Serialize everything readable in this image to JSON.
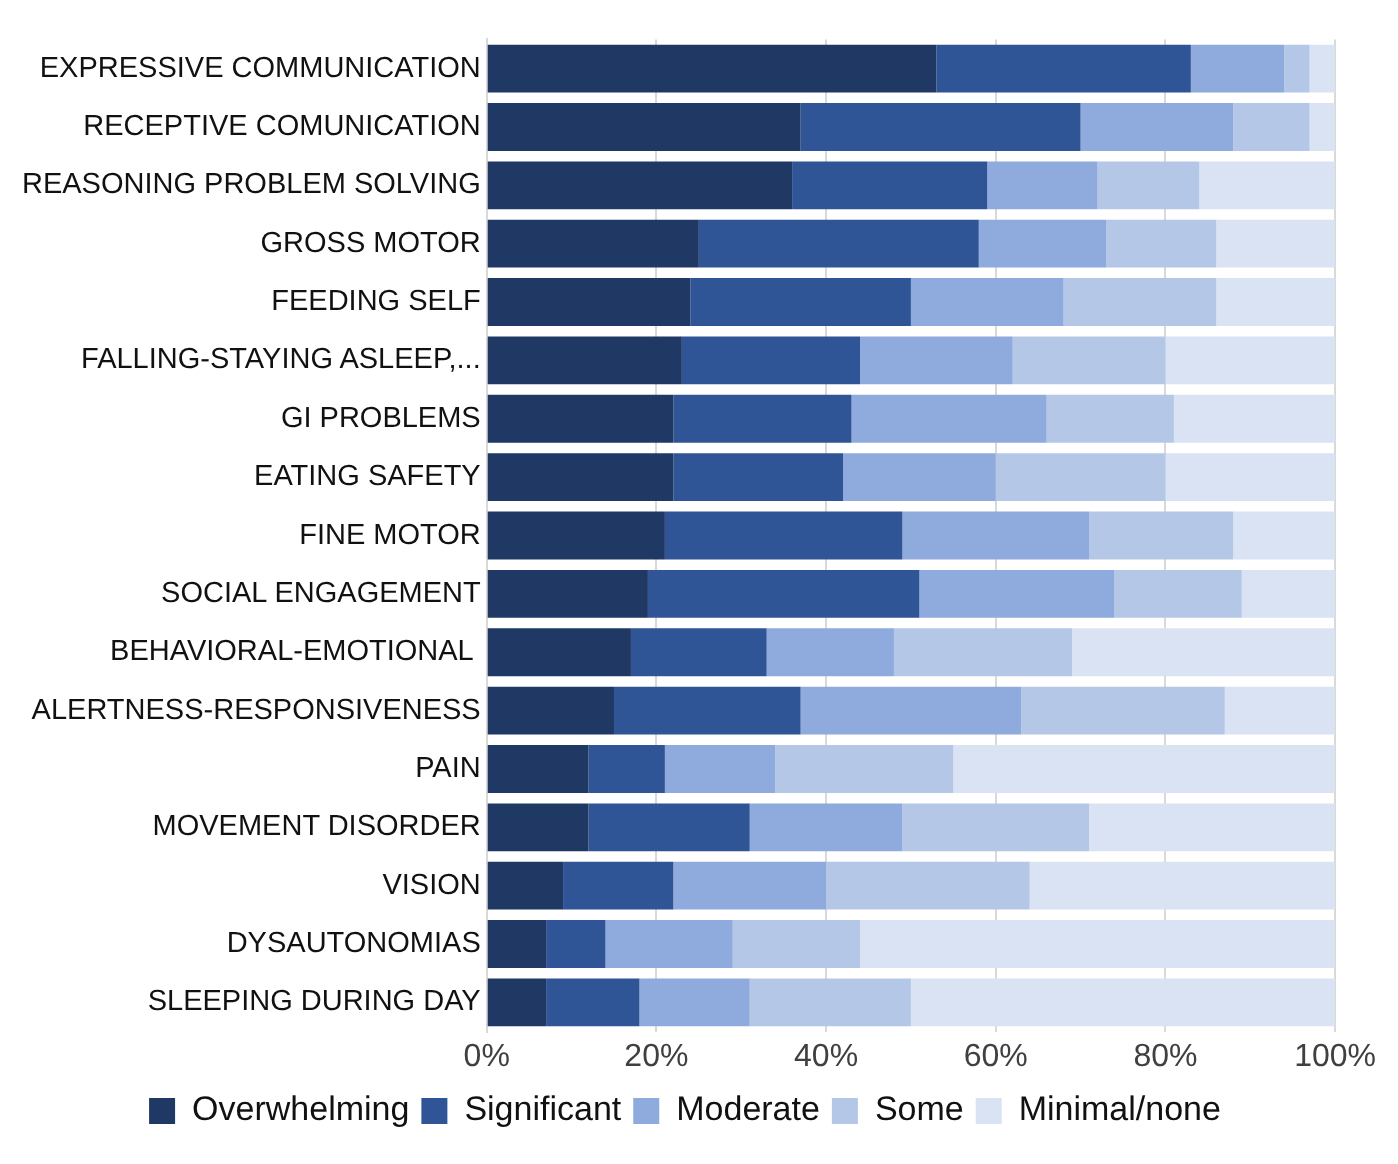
{
  "chart_data": {
    "type": "bar",
    "orientation": "horizontal",
    "stacked": true,
    "grid": "x",
    "legend": "bottom",
    "categories": [
      "EXPRESSIVE COMMUNICATION",
      "RECEPTIVE COMUNICATION",
      "REASONING PROBLEM SOLVING",
      "GROSS MOTOR",
      "FEEDING SELF",
      "FALLING-STAYING ASLEEP,...",
      "GI PROBLEMS",
      "EATING SAFETY",
      "FINE MOTOR",
      "SOCIAL ENGAGEMENT",
      "BEHAVIORAL-EMOTIONAL ",
      "ALERTNESS-RESPONSIVENESS",
      "PAIN",
      "MOVEMENT DISORDER",
      "VISION",
      "DYSAUTONOMIAS",
      "SLEEPING DURING DAY"
    ],
    "xlim": [
      0,
      100
    ],
    "xticks": [
      {
        "value": 0,
        "label": "0%"
      },
      {
        "value": 20,
        "label": "20%"
      },
      {
        "value": 40,
        "label": "40%"
      },
      {
        "value": 60,
        "label": "60%"
      },
      {
        "value": 80,
        "label": "80%"
      },
      {
        "value": 100,
        "label": "100%"
      }
    ],
    "series": [
      {
        "name": "Overwhelming",
        "color": "#203864",
        "values": [
          53,
          37,
          36,
          25,
          24,
          23,
          22,
          22,
          21,
          19,
          17,
          15,
          12,
          12,
          9,
          7,
          7
        ]
      },
      {
        "name": "Significant",
        "color": "#2f5597",
        "values": [
          30,
          33,
          23,
          33,
          26,
          21,
          21,
          20,
          28,
          32,
          16,
          22,
          9,
          19,
          13,
          7,
          11
        ]
      },
      {
        "name": "Moderate",
        "color": "#8faadc",
        "values": [
          11,
          18,
          13,
          15,
          18,
          18,
          23,
          18,
          22,
          23,
          15,
          26,
          13,
          18,
          18,
          15,
          13
        ]
      },
      {
        "name": "Some",
        "color": "#b4c7e7",
        "values": [
          3,
          9,
          12,
          13,
          18,
          18,
          15,
          20,
          17,
          15,
          21,
          24,
          21,
          22,
          24,
          15,
          19
        ]
      },
      {
        "name": "Minimal/none",
        "color": "#dae3f3",
        "values": [
          3,
          3,
          16,
          14,
          14,
          20,
          19,
          20,
          12,
          11,
          31,
          13,
          45,
          29,
          36,
          56,
          50
        ]
      }
    ]
  }
}
